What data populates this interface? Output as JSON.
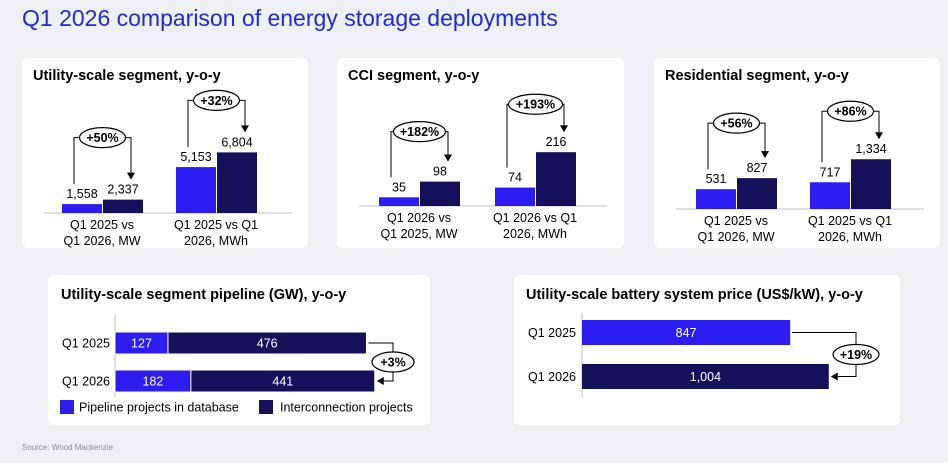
{
  "page_title": "Q1 2026 comparison of energy storage deployments",
  "source": "Source: Wood Mackenzie",
  "colors": {
    "blue": "#2d1df0",
    "navy": "#14115a",
    "title": "#1e2bd6"
  },
  "chart_data": [
    {
      "type": "bar",
      "title": "Utility-scale segment, y-o-y",
      "groups": [
        {
          "label": [
            "Q1 2025 vs",
            "Q1 2026, MW"
          ],
          "values": [
            1558,
            2337
          ],
          "value_labels": [
            "1,558",
            "2,337"
          ],
          "change": "+50%"
        },
        {
          "label": [
            "Q1 2025 vs Q1",
            "2026, MWh"
          ],
          "values": [
            5153,
            6804
          ],
          "value_labels": [
            "5,153",
            "6,804"
          ],
          "change": "+32%"
        }
      ]
    },
    {
      "type": "bar",
      "title": "CCI segment, y-o-y",
      "groups": [
        {
          "label": [
            "Q1 2026 vs",
            "Q1 2025, MW"
          ],
          "values": [
            35,
            98
          ],
          "value_labels": [
            "35",
            "98"
          ],
          "change": "+182%"
        },
        {
          "label": [
            "Q1 2026 vs Q1",
            "2026, MWh"
          ],
          "values": [
            74,
            216
          ],
          "value_labels": [
            "74",
            "216"
          ],
          "change": "+193%"
        }
      ]
    },
    {
      "type": "bar",
      "title": "Residential segment, y-o-y",
      "groups": [
        {
          "label": [
            "Q1 2025 vs",
            "Q1 2026, MW"
          ],
          "values": [
            531,
            827
          ],
          "value_labels": [
            "531",
            "827"
          ],
          "change": "+56%"
        },
        {
          "label": [
            "Q1 2025 vs Q1",
            "2026, MWh"
          ],
          "values": [
            717,
            1334
          ],
          "value_labels": [
            "717",
            "1,334"
          ],
          "change": "+86%"
        }
      ]
    },
    {
      "type": "bar",
      "orientation": "horizontal",
      "stacked": true,
      "title": "Utility-scale segment pipeline (GW), y-o-y",
      "categories": [
        "Q1 2025",
        "Q1 2026"
      ],
      "series": [
        {
          "name": "Pipeline projects in database",
          "values": [
            127,
            182
          ]
        },
        {
          "name": "Interconnection projects",
          "values": [
            476,
            441
          ]
        }
      ],
      "change": "+3%",
      "legend": "bottom"
    },
    {
      "type": "bar",
      "orientation": "horizontal",
      "title": "Utility-scale battery system price (US$/kW), y-o-y",
      "categories": [
        "Q1 2025",
        "Q1 2026"
      ],
      "values": [
        847,
        1004
      ],
      "value_labels": [
        "847",
        "1,004"
      ],
      "change": "+19%"
    }
  ]
}
